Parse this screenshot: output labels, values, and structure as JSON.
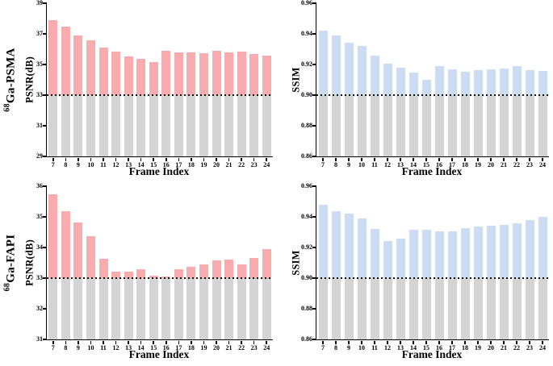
{
  "figure": {
    "xlabel": "Frame Index",
    "background": "#ffffff",
    "baseline_style": "dotted-black"
  },
  "chart_data": [
    {
      "id": "psma-psnr",
      "type": "bar",
      "row_label": {
        "isotope": "68",
        "tracer": "Ga-PSMA"
      },
      "ylabel": "PSNR(dB)",
      "xlabel": "Frame Index",
      "ylim": [
        29,
        39
      ],
      "yticks": [
        "29",
        "31",
        "33",
        "35",
        "37",
        "39"
      ],
      "baseline": 33,
      "grid": false,
      "legend": null,
      "categories": [
        "7",
        "8",
        "9",
        "10",
        "11",
        "12",
        "13",
        "14",
        "15",
        "16",
        "17",
        "18",
        "19",
        "20",
        "21",
        "22",
        "23",
        "24"
      ],
      "values": [
        37.9,
        37.5,
        36.9,
        36.6,
        36.1,
        35.85,
        35.55,
        35.35,
        35.15,
        35.9,
        35.8,
        35.8,
        35.75,
        35.9,
        35.8,
        35.85,
        35.7,
        35.6
      ],
      "colors": {
        "above": "#F9ACAE",
        "below": "#D4D4D4"
      }
    },
    {
      "id": "psma-ssim",
      "type": "bar",
      "row_label": null,
      "ylabel": "SSIM",
      "xlabel": "Frame Index",
      "ylim": [
        0.86,
        0.96
      ],
      "yticks": [
        "0.86",
        "0.88",
        "0.90",
        "0.92",
        "0.94",
        "0.96"
      ],
      "baseline": 0.9,
      "grid": false,
      "legend": null,
      "categories": [
        "7",
        "8",
        "9",
        "10",
        "11",
        "12",
        "13",
        "14",
        "15",
        "16",
        "17",
        "18",
        "19",
        "20",
        "21",
        "22",
        "23",
        "24"
      ],
      "values": [
        0.942,
        0.939,
        0.934,
        0.932,
        0.926,
        0.9205,
        0.918,
        0.915,
        0.91,
        0.919,
        0.917,
        0.9155,
        0.9165,
        0.917,
        0.9175,
        0.919,
        0.9165,
        0.916
      ],
      "colors": {
        "above": "#CADDF5",
        "below": "#D4D4D4"
      }
    },
    {
      "id": "fapi-psnr",
      "type": "bar",
      "row_label": {
        "isotope": "68",
        "tracer": "Ga-FAPI"
      },
      "ylabel": "PSNR(dB)",
      "xlabel": "Frame Index",
      "ylim": [
        31,
        36
      ],
      "yticks": [
        "31",
        "32",
        "33",
        "34",
        "35",
        "36"
      ],
      "baseline": 33,
      "grid": false,
      "legend": null,
      "categories": [
        "7",
        "8",
        "9",
        "10",
        "11",
        "12",
        "13",
        "14",
        "15",
        "16",
        "17",
        "18",
        "19",
        "20",
        "21",
        "22",
        "23",
        "24"
      ],
      "values": [
        35.73,
        35.18,
        34.82,
        34.37,
        33.62,
        33.2,
        33.21,
        33.28,
        33.07,
        33.04,
        33.3,
        33.37,
        33.45,
        33.59,
        33.61,
        33.46,
        33.67,
        33.94
      ],
      "colors": {
        "above": "#F9ACAE",
        "below": "#D4D4D4"
      }
    },
    {
      "id": "fapi-ssim",
      "type": "bar",
      "row_label": null,
      "ylabel": "SSIM",
      "xlabel": "Frame Index",
      "ylim": [
        0.86,
        0.96
      ],
      "yticks": [
        "0.86",
        "0.88",
        "0.90",
        "0.92",
        "0.94",
        "0.96"
      ],
      "baseline": 0.9,
      "grid": false,
      "legend": null,
      "categories": [
        "7",
        "8",
        "9",
        "10",
        "11",
        "12",
        "13",
        "14",
        "15",
        "16",
        "17",
        "18",
        "19",
        "20",
        "21",
        "22",
        "23",
        "24"
      ],
      "values": [
        0.948,
        0.9435,
        0.942,
        0.939,
        0.932,
        0.924,
        0.926,
        0.9315,
        0.9315,
        0.9305,
        0.9305,
        0.9325,
        0.9335,
        0.934,
        0.9345,
        0.936,
        0.938,
        0.94
      ],
      "colors": {
        "above": "#CADDF5",
        "below": "#D4D4D4"
      }
    }
  ]
}
